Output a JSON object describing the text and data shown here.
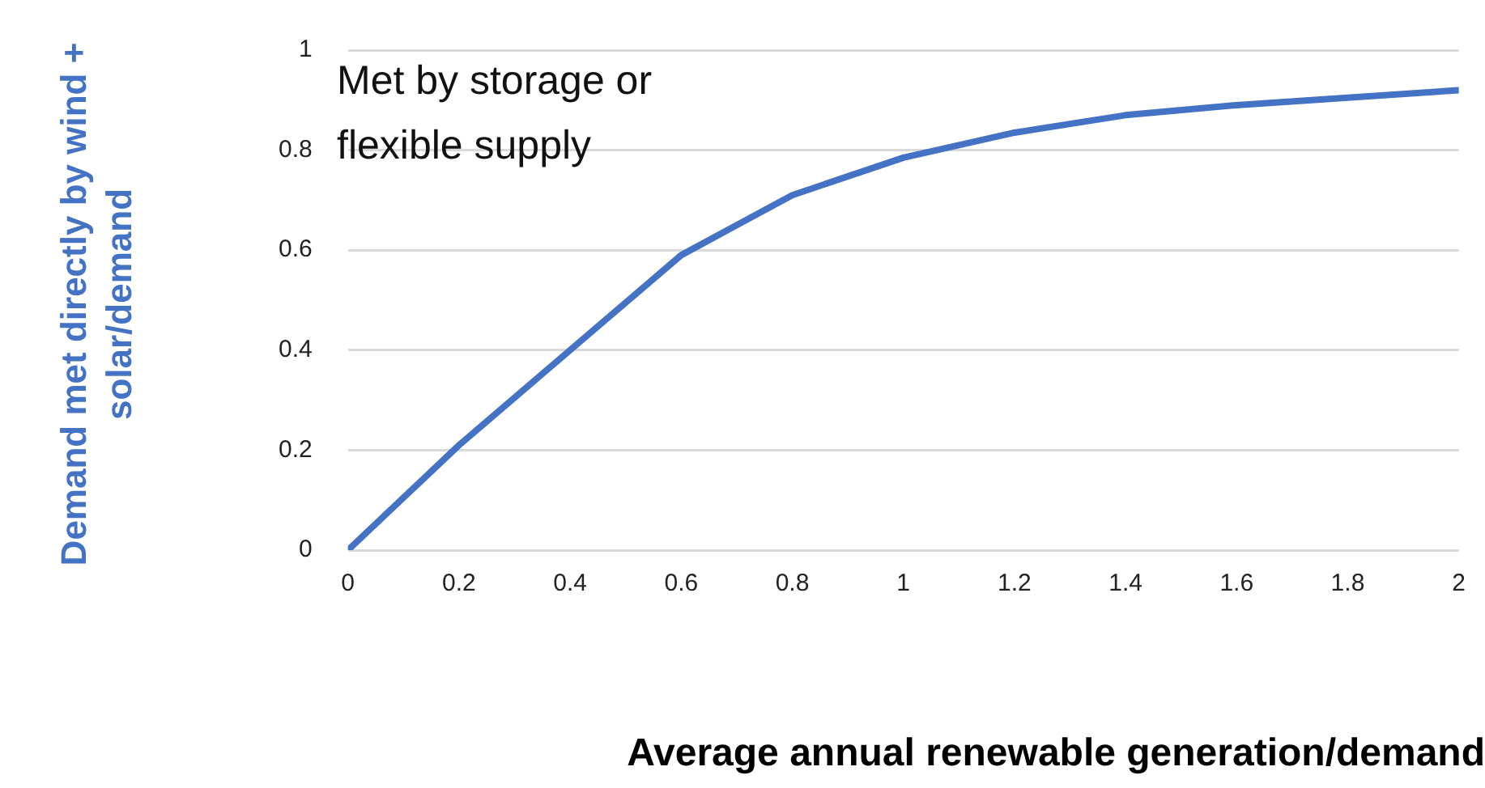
{
  "chart_data": {
    "type": "line",
    "xlabel": "Average annual renewable generation/demand",
    "ylabel": "Demand met directly  by wind + solar/demand",
    "annotations": [
      "Met by storage or flexible supply"
    ],
    "x": [
      0,
      0.2,
      0.4,
      0.6,
      0.7,
      0.8,
      1,
      1.2,
      1.4,
      1.6,
      1.8,
      2
    ],
    "series": [
      {
        "color": "#4472c4",
        "values": [
          0,
          0.21,
          0.4,
          0.59,
          0.65,
          0.71,
          0.785,
          0.835,
          0.87,
          0.89,
          0.905,
          0.92
        ]
      }
    ],
    "xlim": [
      0,
      2
    ],
    "xticks": [
      0,
      0.2,
      0.4,
      0.6,
      0.8,
      1,
      1.2,
      1.4,
      1.6,
      1.8,
      2
    ],
    "ylim": [
      0,
      1
    ],
    "yticks": [
      0,
      0.2,
      0.4,
      0.6,
      0.8,
      1
    ],
    "grid": "y",
    "legend": false,
    "marker": "none",
    "line_style": "solid"
  }
}
